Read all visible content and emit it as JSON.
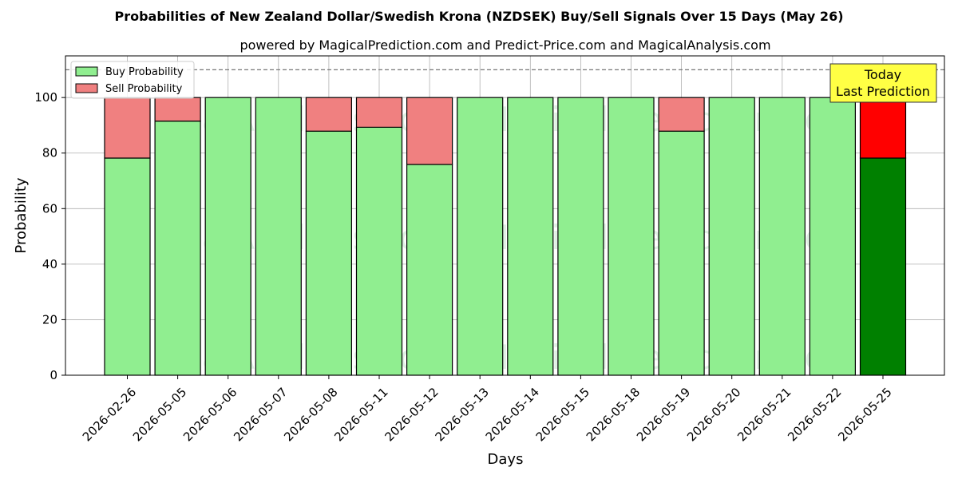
{
  "chart_data": {
    "type": "bar",
    "title": "Probabilities of New Zealand Dollar/Swedish Krona (NZDSEK) Buy/Sell Signals Over 15 Days (May 26)",
    "subtitle": "powered by MagicalPrediction.com and Predict-Price.com and MagicalAnalysis.com",
    "xlabel": "Days",
    "ylabel": "Probability",
    "ylim": [
      0,
      115
    ],
    "yticks": [
      0,
      20,
      40,
      60,
      80,
      100
    ],
    "grid": true,
    "stacked": true,
    "legend_position": "top-left",
    "reference_line": 110,
    "categories": [
      "2026-02-26",
      "2026-05-05",
      "2026-05-06",
      "2026-05-07",
      "2026-05-08",
      "2026-05-11",
      "2026-05-12",
      "2026-05-13",
      "2026-05-14",
      "2026-05-15",
      "2026-05-18",
      "2026-05-19",
      "2026-05-20",
      "2026-05-21",
      "2026-05-22",
      "2026-05-25"
    ],
    "series": [
      {
        "name": "Buy Probability",
        "color": "#90ee90",
        "highlight_color": "#008000",
        "values": [
          78.2,
          91.5,
          100,
          100,
          87.9,
          89.3,
          75.9,
          100,
          100,
          100,
          100,
          87.9,
          100,
          100,
          100,
          78.2
        ]
      },
      {
        "name": "Sell Probability",
        "color": "#f08080",
        "highlight_color": "#ff0000",
        "values": [
          21.8,
          8.5,
          0,
          0,
          12.1,
          10.7,
          24.1,
          0,
          0,
          0,
          0,
          12.1,
          0,
          0,
          0,
          21.8
        ]
      }
    ],
    "highlight_index": 15,
    "annotation": {
      "line1": "Today",
      "line2": "Last Prediction",
      "bg_color": "#ffff44"
    },
    "watermarks": [
      "MagicalAnalysis.com",
      "MagicalPrediction.com"
    ]
  }
}
